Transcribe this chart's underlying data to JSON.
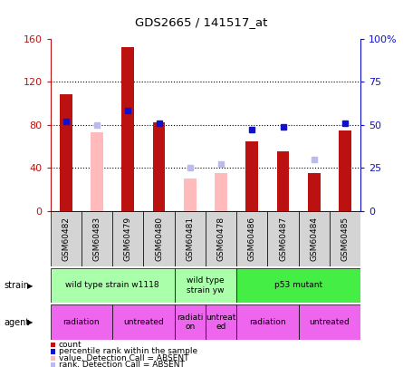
{
  "title": "GDS2665 / 141517_at",
  "samples": [
    "GSM60482",
    "GSM60483",
    "GSM60479",
    "GSM60480",
    "GSM60481",
    "GSM60478",
    "GSM60486",
    "GSM60487",
    "GSM60484",
    "GSM60485"
  ],
  "count_values": [
    108,
    null,
    152,
    82,
    null,
    null,
    65,
    55,
    35,
    75
  ],
  "count_absent": [
    null,
    73,
    null,
    null,
    30,
    35,
    null,
    null,
    null,
    null
  ],
  "rank_values": [
    52,
    null,
    58,
    51,
    null,
    null,
    47,
    49,
    null,
    51
  ],
  "rank_absent": [
    null,
    50,
    null,
    null,
    25,
    27,
    null,
    null,
    30,
    null
  ],
  "ylim_left": [
    0,
    160
  ],
  "ylim_right": [
    0,
    100
  ],
  "yticks_left": [
    0,
    40,
    80,
    120,
    160
  ],
  "yticks_right": [
    0,
    25,
    50,
    75,
    100
  ],
  "ytick_labels_right": [
    "0",
    "25",
    "50",
    "75",
    "100%"
  ],
  "color_count": "#bb1111",
  "color_rank": "#1111cc",
  "color_count_absent": "#ffbbbb",
  "color_rank_absent": "#bbbbee",
  "strain_groups": [
    {
      "label": "wild type strain w1118",
      "start": 0,
      "end": 4,
      "color": "#aaffaa"
    },
    {
      "label": "wild type\nstrain yw",
      "start": 4,
      "end": 6,
      "color": "#aaffaa"
    },
    {
      "label": "p53 mutant",
      "start": 6,
      "end": 10,
      "color": "#44ee44"
    }
  ],
  "agent_groups": [
    {
      "label": "radiation",
      "start": 0,
      "end": 2,
      "color": "#ee66ee"
    },
    {
      "label": "untreated",
      "start": 2,
      "end": 4,
      "color": "#ee66ee"
    },
    {
      "label": "radiati\non",
      "start": 4,
      "end": 5,
      "color": "#ee66ee"
    },
    {
      "label": "untreat\ned",
      "start": 5,
      "end": 6,
      "color": "#ee66ee"
    },
    {
      "label": "radiation",
      "start": 6,
      "end": 8,
      "color": "#ee66ee"
    },
    {
      "label": "untreated",
      "start": 8,
      "end": 10,
      "color": "#ee66ee"
    }
  ],
  "legend_items": [
    {
      "label": "count",
      "color": "#bb1111"
    },
    {
      "label": "percentile rank within the sample",
      "color": "#1111cc"
    },
    {
      "label": "value, Detection Call = ABSENT",
      "color": "#ffbbbb"
    },
    {
      "label": "rank, Detection Call = ABSENT",
      "color": "#bbbbee"
    }
  ],
  "bar_width": 0.4,
  "col_bg_color": "#d8d8d8",
  "grid_color": "#000000"
}
